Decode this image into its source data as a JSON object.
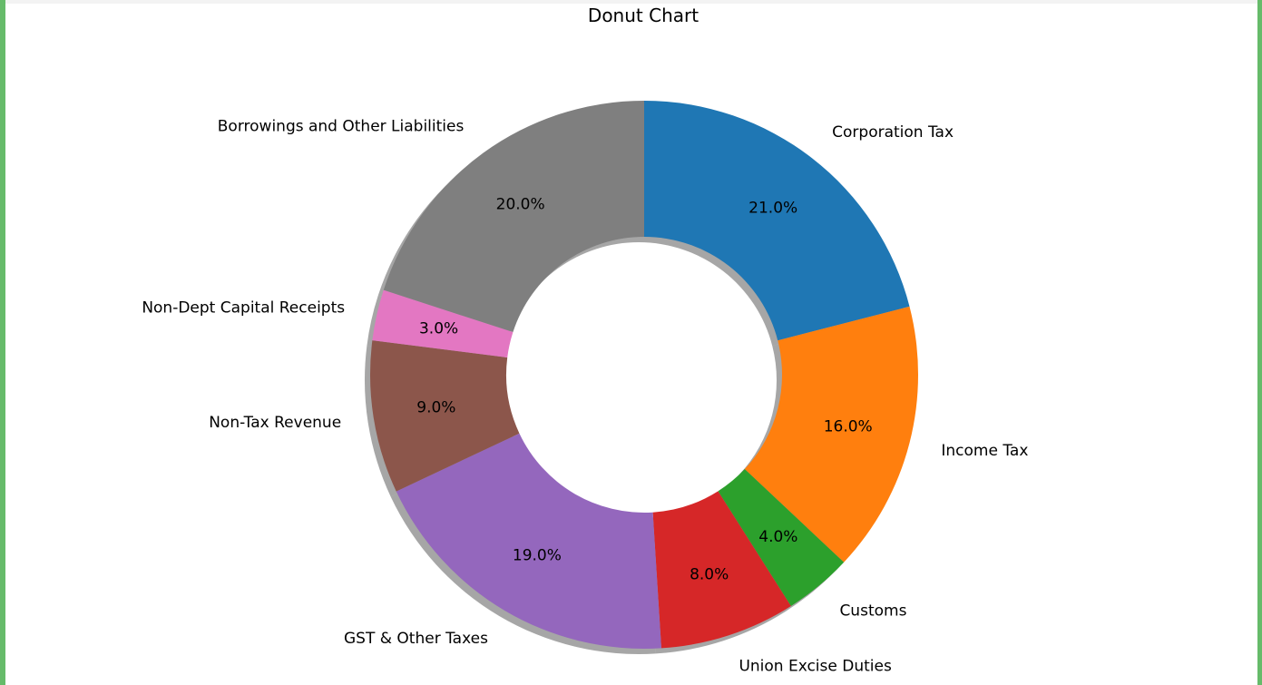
{
  "chart_data": {
    "type": "pie",
    "variant": "donut",
    "title": "Donut Chart",
    "categories": [
      "Corporation Tax",
      "Income Tax",
      "Customs",
      "Union Excise Duties",
      "GST & Other Taxes",
      "Non-Tax Revenue",
      "Non-Dept Capital Receipts",
      "Borrowings and Other Liabilities"
    ],
    "values": [
      21,
      16,
      4,
      8,
      19,
      9,
      3,
      20
    ],
    "value_labels": [
      "21.0%",
      "16.0%",
      "4.0%",
      "8.0%",
      "19.0%",
      "9.0%",
      "3.0%",
      "20.0%"
    ],
    "colors": [
      "#1f77b4",
      "#ff7f0e",
      "#2ca02c",
      "#d62728",
      "#9467bd",
      "#8c564b",
      "#e377c2",
      "#7f7f7f"
    ],
    "start_angle_deg": 90,
    "direction": "clockwise",
    "shadow": true,
    "legend": "none"
  }
}
